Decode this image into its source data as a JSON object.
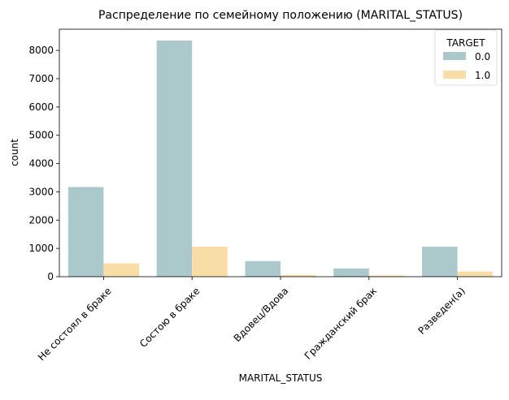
{
  "chart_data": {
    "type": "bar",
    "title": "Распределение по семейному положению (MARITAL_STATUS)",
    "xlabel": "MARITAL_STATUS",
    "ylabel": "count",
    "categories": [
      "Не состоял в браке",
      "Состою в браке",
      "Вдовец/Вдова",
      "Гражданский брак",
      "Разведен(а)"
    ],
    "ylim": [
      0,
      8750
    ],
    "yticks": [
      "0",
      "1000",
      "2000",
      "3000",
      "4000",
      "5000",
      "6000",
      "7000",
      "8000"
    ],
    "grid": false,
    "legend": {
      "title": "TARGET",
      "placement": "top-right"
    },
    "series": [
      {
        "name": "0.0",
        "color": "#abc9ca",
        "values": [
          3170,
          8350,
          550,
          290,
          1060
        ]
      },
      {
        "name": "1.0",
        "color": "#f8dea6",
        "values": [
          470,
          1060,
          60,
          40,
          180
        ]
      }
    ]
  }
}
